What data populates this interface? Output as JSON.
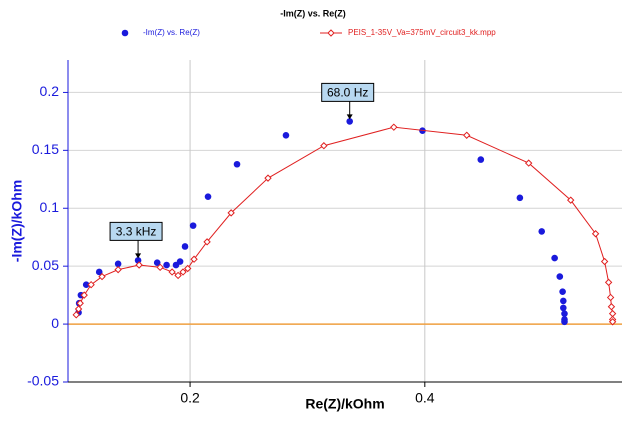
{
  "chart_data": {
    "type": "scatter",
    "title": "-Im(Z) vs. Re(Z)",
    "x_label": "Re(Z)/kOhm",
    "y_label": "-Im(Z)/kOhm",
    "xlim": [
      0.096,
      0.568
    ],
    "ylim": [
      -0.05,
      0.228
    ],
    "xticks": [
      0.2,
      0.4
    ],
    "yticks": [
      -0.05,
      0,
      0.05,
      0.1,
      0.15,
      0.2
    ],
    "grid": true,
    "legend": "top",
    "zero_line_color": "#f0a040",
    "series": [
      {
        "name": "-Im(Z) vs. Re(Z)",
        "color": "#1a1adc",
        "style": "markers",
        "x": [
          0.105,
          0.1055,
          0.107,
          0.1115,
          0.1226,
          0.1387,
          0.1557,
          0.172,
          0.18,
          0.188,
          0.1915,
          0.1957,
          0.2026,
          0.2153,
          0.24,
          0.2817,
          0.336,
          0.398,
          0.4477,
          0.481,
          0.4996,
          0.5106,
          0.515,
          0.5174,
          0.518,
          0.518,
          0.519,
          0.519,
          0.519
        ],
        "values": [
          0.01,
          0.018,
          0.025,
          0.034,
          0.045,
          0.052,
          0.055,
          0.053,
          0.051,
          0.051,
          0.054,
          0.067,
          0.085,
          0.11,
          0.138,
          0.163,
          0.175,
          0.167,
          0.142,
          0.109,
          0.08,
          0.057,
          0.041,
          0.028,
          0.02,
          0.014,
          0.009,
          0.004,
          0.002
        ]
      },
      {
        "name": "PEIS_1-35V_Va=375mV_circuit3_kk.mpp",
        "color": "#e02020",
        "style": "line-diamond",
        "x": [
          0.103,
          0.105,
          0.1064,
          0.1098,
          0.1157,
          0.125,
          0.1387,
          0.1566,
          0.1745,
          0.1847,
          0.1898,
          0.194,
          0.198,
          0.2034,
          0.2145,
          0.235,
          0.2664,
          0.314,
          0.3736,
          0.4357,
          0.4885,
          0.5243,
          0.5455,
          0.5532,
          0.5566,
          0.5583,
          0.559,
          0.56,
          0.56,
          0.56
        ],
        "values": [
          0.008,
          0.013,
          0.018,
          0.025,
          0.034,
          0.041,
          0.047,
          0.051,
          0.049,
          0.045,
          0.042,
          0.045,
          0.048,
          0.056,
          0.071,
          0.096,
          0.126,
          0.154,
          0.17,
          0.163,
          0.139,
          0.107,
          0.078,
          0.054,
          0.036,
          0.023,
          0.015,
          0.009,
          0.004,
          0.002
        ]
      }
    ],
    "annotations": [
      {
        "text": "3.3 kHz",
        "x": 0.1557,
        "y": 0.055
      },
      {
        "text": "68.0 Hz",
        "x": 0.336,
        "y": 0.175
      }
    ]
  }
}
